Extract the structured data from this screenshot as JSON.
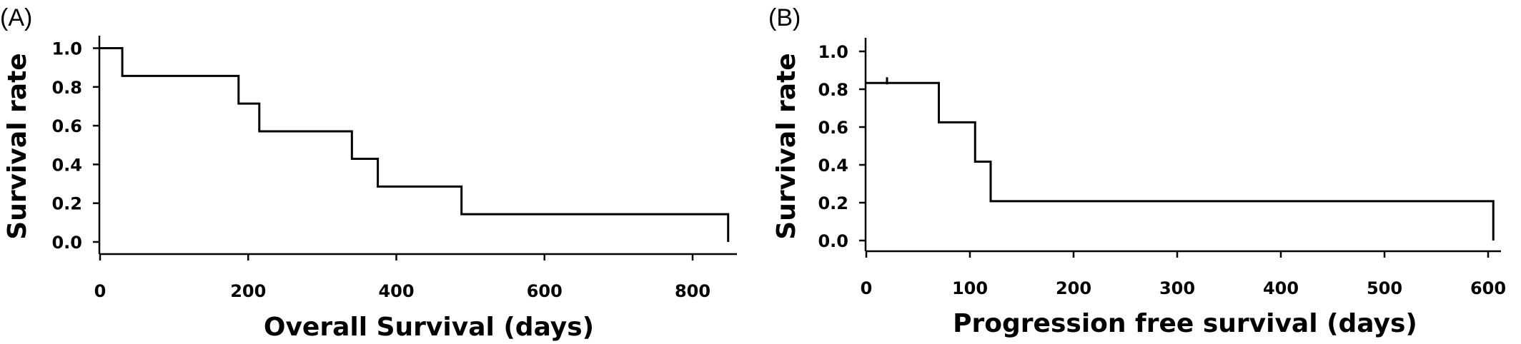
{
  "chart_data": [
    {
      "type": "line",
      "subtype": "kaplan-meier-step",
      "panel_label": "(A)",
      "xlabel": "Overall Survival (days)",
      "ylabel": "Survival rate",
      "xlim": [
        0,
        860
      ],
      "ylim": [
        0,
        1.0
      ],
      "x_ticks": [
        0,
        200,
        400,
        600,
        800
      ],
      "x_tick_labels": [
        "0",
        "200",
        "400",
        "600",
        "800"
      ],
      "y_ticks": [
        0.0,
        0.2,
        0.4,
        0.6,
        0.8,
        1.0
      ],
      "y_tick_labels": [
        "0.0",
        "0.2",
        "0.4",
        "0.6",
        "0.8",
        "1.0"
      ],
      "grid": false,
      "series": [
        {
          "x": [
            0,
            30,
            187,
            215,
            340,
            375,
            488,
            848
          ],
          "y": [
            1.0,
            0.857,
            0.714,
            0.571,
            0.429,
            0.286,
            0.143,
            0.0
          ]
        }
      ],
      "censored": []
    },
    {
      "type": "line",
      "subtype": "kaplan-meier-step",
      "panel_label": "(B)",
      "xlabel": "Progression free survival (days)",
      "ylabel": "Survival rate",
      "xlim": [
        0,
        620
      ],
      "ylim": [
        0,
        1.0
      ],
      "x_ticks": [
        0,
        100,
        200,
        300,
        400,
        500,
        600
      ],
      "x_tick_labels": [
        "0",
        "100",
        "200",
        "300",
        "400",
        "500",
        "600"
      ],
      "y_ticks": [
        0.0,
        0.2,
        0.4,
        0.6,
        0.8,
        1.0
      ],
      "y_tick_labels": [
        "0.0",
        "0.2",
        "0.4",
        "0.6",
        "0.8",
        "1.0"
      ],
      "grid": false,
      "series": [
        {
          "x": [
            0,
            70,
            105,
            120,
            605
          ],
          "y": [
            0.833,
            0.625,
            0.417,
            0.208,
            0.0
          ]
        }
      ],
      "censored": [
        {
          "x": 20,
          "y": 0.833
        }
      ]
    }
  ]
}
